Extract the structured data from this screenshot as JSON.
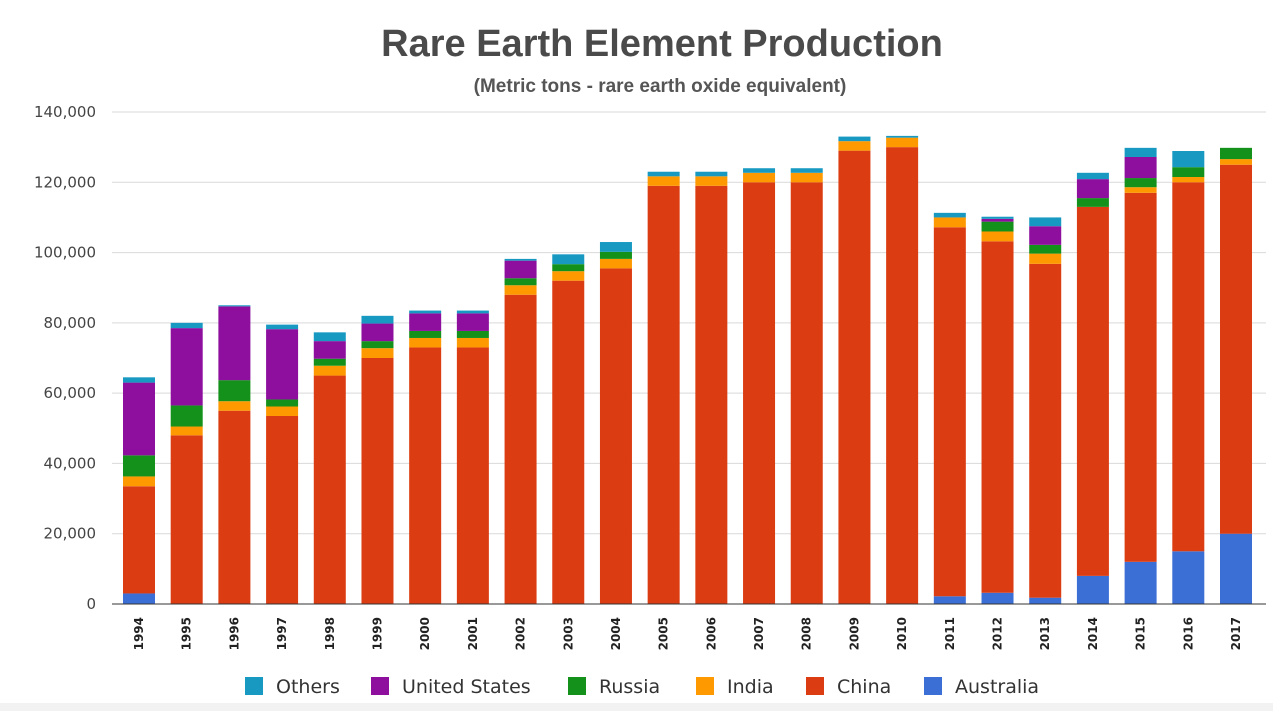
{
  "chart_data": {
    "type": "bar",
    "stacked": true,
    "title": "Rare Earth Element Production",
    "subtitle": "(Metric tons - rare earth oxide equivalent)",
    "xlabel": "",
    "ylabel": "",
    "ylim": [
      0,
      140000
    ],
    "yticks": [
      "0",
      "20,000",
      "40,000",
      "60,000",
      "80,000",
      "100,000",
      "120,000",
      "140,000"
    ],
    "ytick_values": [
      0,
      20000,
      40000,
      60000,
      80000,
      100000,
      120000,
      140000
    ],
    "grid": true,
    "legend_position": "bottom",
    "categories": [
      "1994",
      "1995",
      "1996",
      "1997",
      "1998",
      "1999",
      "2000",
      "2001",
      "2002",
      "2003",
      "2004",
      "2005",
      "2006",
      "2007",
      "2008",
      "2009",
      "2010",
      "2011",
      "2012",
      "2013",
      "2014",
      "2015",
      "2016",
      "2017"
    ],
    "series": [
      {
        "name": "Australia",
        "color": "#3b6fd6",
        "values": [
          3000,
          0,
          0,
          0,
          0,
          0,
          0,
          0,
          0,
          0,
          0,
          0,
          0,
          0,
          0,
          0,
          0,
          2200,
          3200,
          1800,
          8000,
          12000,
          15000,
          20000
        ]
      },
      {
        "name": "China",
        "color": "#dc3c12",
        "values": [
          30500,
          48000,
          55000,
          53500,
          65000,
          70000,
          73000,
          73000,
          88000,
          92000,
          95500,
          119000,
          119000,
          120000,
          120000,
          129000,
          130000,
          105000,
          100000,
          95000,
          105000,
          105000,
          105000,
          105000
        ]
      },
      {
        "name": "India",
        "color": "#ff9900",
        "values": [
          2800,
          2500,
          2700,
          2700,
          2800,
          2800,
          2700,
          2700,
          2700,
          2700,
          2700,
          2700,
          2700,
          2700,
          2700,
          2700,
          2700,
          2800,
          2800,
          2900,
          0,
          1600,
          1500,
          1600
        ]
      },
      {
        "name": "Russia",
        "color": "#14911b",
        "values": [
          6000,
          6000,
          6000,
          2000,
          2000,
          2000,
          2000,
          2000,
          2000,
          2000,
          2000,
          0,
          0,
          0,
          0,
          0,
          0,
          0,
          2800,
          2500,
          2500,
          2600,
          2800,
          3200
        ]
      },
      {
        "name": "United States",
        "color": "#8e0e9e",
        "values": [
          20700,
          22000,
          21000,
          20000,
          5000,
          5000,
          5000,
          5000,
          5000,
          0,
          0,
          0,
          0,
          0,
          0,
          0,
          0,
          0,
          800,
          5300,
          5400,
          6000,
          0,
          0
        ]
      },
      {
        "name": "Others",
        "color": "#1799c2",
        "values": [
          1500,
          1500,
          300,
          1300,
          2500,
          2200,
          800,
          800,
          500,
          2800,
          2800,
          1300,
          1300,
          1300,
          1300,
          1300,
          500,
          1300,
          600,
          2500,
          1800,
          2600,
          4600,
          0
        ]
      }
    ],
    "legend_order": [
      "Others",
      "United States",
      "Russia",
      "India",
      "China",
      "Australia"
    ]
  }
}
